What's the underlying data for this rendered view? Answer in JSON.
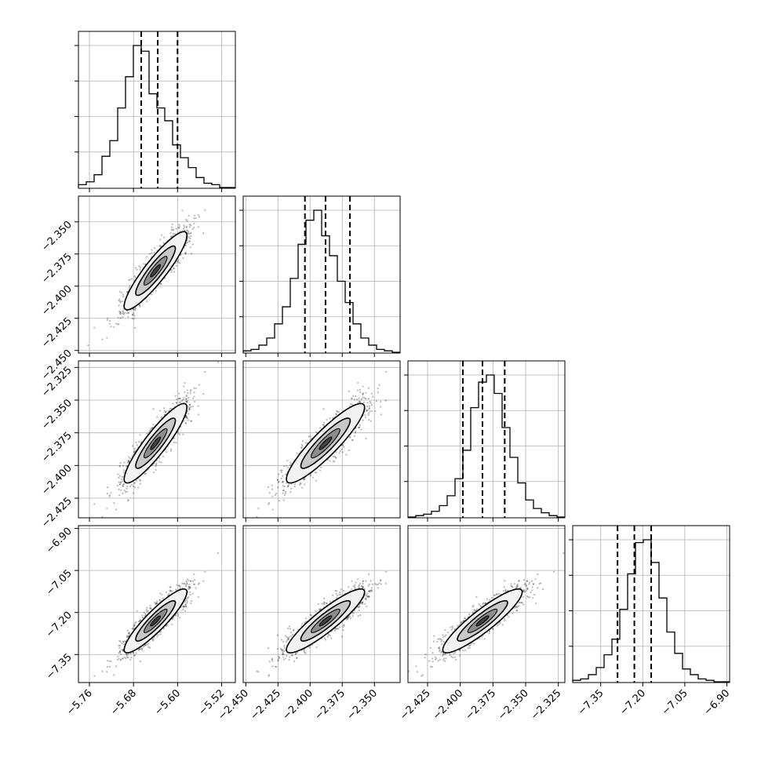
{
  "chart_data": {
    "type": "corner",
    "parameters": [
      {
        "range": [
          -5.78,
          -5.495
        ],
        "ticks": [
          -5.76,
          -5.68,
          -5.6,
          -5.52
        ],
        "tick_labels": [
          "−5.76",
          "−5.68",
          "−5.60",
          "−5.52"
        ],
        "mean": -5.64,
        "sd": 0.03,
        "quantiles": [
          -5.666,
          -5.636,
          -5.6
        ]
      },
      {
        "range": [
          -2.452,
          -2.33
        ],
        "ticks": [
          -2.45,
          -2.425,
          -2.4,
          -2.375,
          -2.35
        ],
        "tick_labels": [
          "−2.450",
          "−2.425",
          "−2.400",
          "−2.375",
          "−2.350"
        ],
        "mean": -2.388,
        "sd": 0.016,
        "quantiles": [
          -2.404,
          -2.388,
          -2.369
        ]
      },
      {
        "range": [
          -2.44,
          -2.32
        ],
        "ticks": [
          -2.425,
          -2.4,
          -2.375,
          -2.35,
          -2.325
        ],
        "tick_labels": [
          "−2.425",
          "−2.400",
          "−2.375",
          "−2.350",
          "−2.325"
        ],
        "mean": -2.383,
        "sd": 0.016,
        "quantiles": [
          -2.398,
          -2.383,
          -2.366
        ]
      },
      {
        "range": [
          -7.45,
          -6.89
        ],
        "ticks": [
          -7.35,
          -7.2,
          -7.05,
          -6.9
        ],
        "tick_labels": [
          "−7.35",
          "−7.20",
          "−7.05",
          "−6.90"
        ],
        "mean": -7.23,
        "sd": 0.06,
        "quantiles": [
          -7.29,
          -7.23,
          -7.17
        ]
      }
    ],
    "histograms": [
      [
        0.02,
        0.04,
        0.09,
        0.22,
        0.33,
        0.56,
        0.78,
        1.0,
        0.96,
        0.66,
        0.56,
        0.47,
        0.3,
        0.21,
        0.14,
        0.07,
        0.03,
        0.02,
        0.0,
        0.0
      ],
      [
        0.01,
        0.02,
        0.05,
        0.1,
        0.2,
        0.32,
        0.52,
        0.76,
        0.93,
        1.0,
        0.82,
        0.68,
        0.5,
        0.35,
        0.2,
        0.1,
        0.05,
        0.02,
        0.01,
        0.0
      ],
      [
        0.0,
        0.01,
        0.02,
        0.04,
        0.08,
        0.15,
        0.27,
        0.47,
        0.77,
        0.95,
        1.0,
        0.87,
        0.63,
        0.42,
        0.24,
        0.12,
        0.06,
        0.03,
        0.01,
        0.0
      ],
      [
        0.01,
        0.02,
        0.05,
        0.1,
        0.19,
        0.3,
        0.51,
        0.76,
        0.98,
        1.0,
        0.84,
        0.59,
        0.35,
        0.2,
        0.09,
        0.05,
        0.02,
        0.01,
        0.0,
        0.0
      ]
    ],
    "correlation": 0.95,
    "n_samples": 1400,
    "grid": true
  },
  "colors": {
    "axis": "#000000",
    "grid": "#b0b0b0",
    "points": "#000000",
    "contour_outer": "#f2f2f2",
    "contour_mid": "#c8c8c8",
    "contour_inner": "#8c8c8c",
    "contour_core": "#444444"
  }
}
